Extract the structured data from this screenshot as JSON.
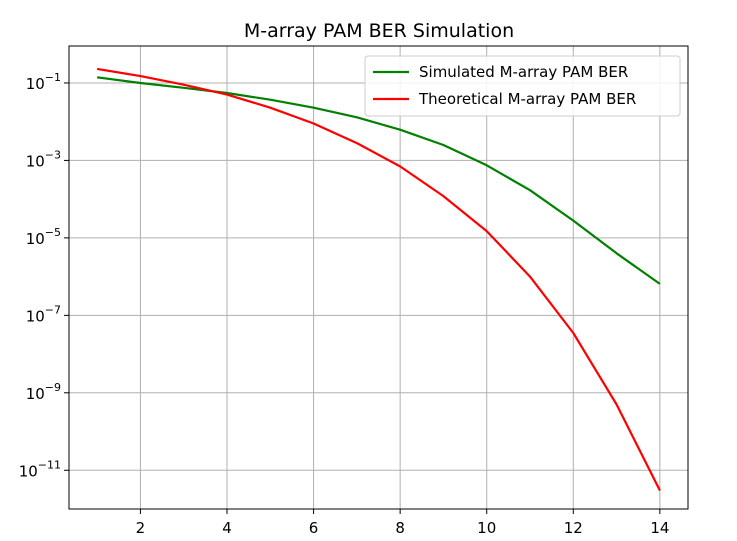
{
  "chart_data": {
    "type": "line",
    "title": "M-array PAM BER Simulation",
    "xlabel": "",
    "ylabel": "",
    "xlim": [
      0.35,
      14.65
    ],
    "ylim": [
      1e-12,
      0.9
    ],
    "yscale": "log",
    "grid": true,
    "legend_position": "top-right",
    "x_ticks": [
      2,
      4,
      6,
      8,
      10,
      12,
      14
    ],
    "y_ticks": [
      {
        "base": "10",
        "exp": "−1",
        "value": 0.1
      },
      {
        "base": "10",
        "exp": "−3",
        "value": 0.001
      },
      {
        "base": "10",
        "exp": "−5",
        "value": 1e-05
      },
      {
        "base": "10",
        "exp": "−7",
        "value": 1e-07
      },
      {
        "base": "10",
        "exp": "−9",
        "value": 1e-09
      },
      {
        "base": "10",
        "exp": "−11",
        "value": 1e-11
      }
    ],
    "x": [
      1,
      2,
      3,
      4,
      5,
      6,
      7,
      8,
      9,
      10,
      11,
      12,
      13,
      14
    ],
    "series": [
      {
        "name": "Simulated M-array PAM BER",
        "color": "#008000",
        "values": [
          0.14,
          0.1,
          0.075,
          0.055,
          0.037,
          0.023,
          0.013,
          0.0062,
          0.0025,
          0.00075,
          0.00017,
          2.8e-05,
          4e-06,
          6.5e-07
        ]
      },
      {
        "name": "Theoretical M-array PAM BER",
        "color": "#ff0000",
        "values": [
          0.23,
          0.15,
          0.09,
          0.05,
          0.023,
          0.009,
          0.0028,
          0.0007,
          0.00012,
          1.5e-05,
          1e-06,
          3.5e-08,
          5e-10,
          3e-12
        ]
      }
    ]
  }
}
